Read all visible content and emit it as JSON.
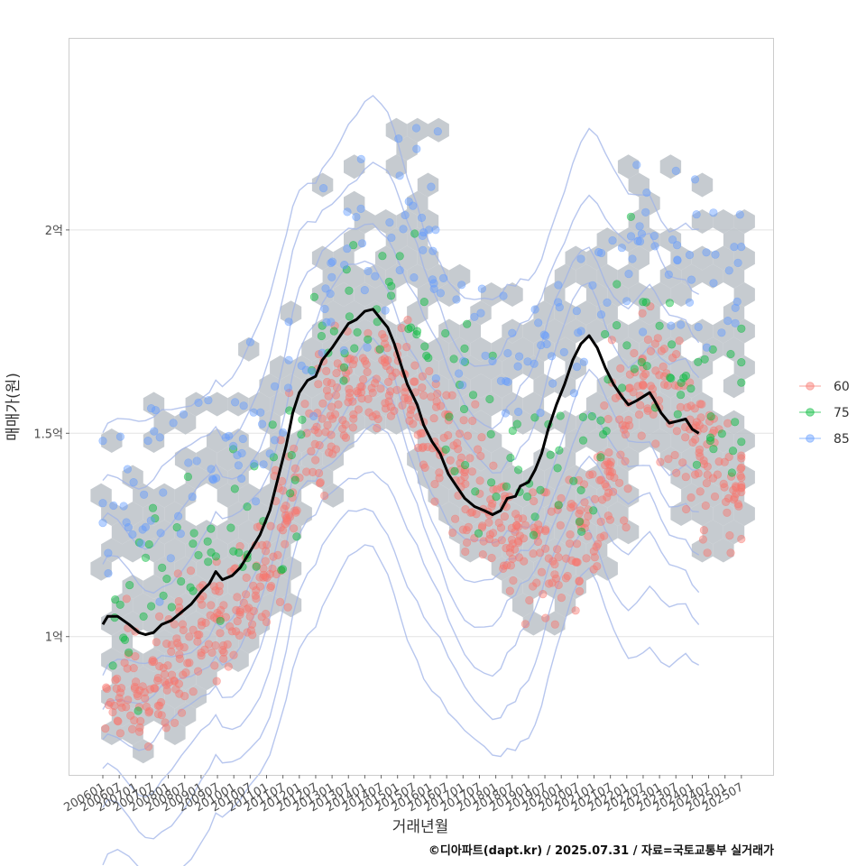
{
  "chart_data": {
    "type": "scatter",
    "xlabel": "거래년월",
    "ylabel": "매매가(원)",
    "caption": "©디아파트(dapt.kr) / 2025.07.31 / 자료=국토교통부 실거래가",
    "x_ticks": [
      "200601",
      "200607",
      "200701",
      "200707",
      "200801",
      "200807",
      "200901",
      "200907",
      "201001",
      "201007",
      "201101",
      "201107",
      "201201",
      "201207",
      "201301",
      "201307",
      "201401",
      "201407",
      "201501",
      "201507",
      "201601",
      "201607",
      "201701",
      "201707",
      "201801",
      "201807",
      "201901",
      "201907",
      "202001",
      "202007",
      "202101",
      "202107",
      "202201",
      "202207",
      "202301",
      "202307",
      "202401",
      "202407",
      "202501",
      "202507"
    ],
    "y_ticks": [
      {
        "value": 100000000,
        "label": "1억"
      },
      {
        "value": 150000000,
        "label": "1.5억"
      },
      {
        "value": 200000000,
        "label": "2억"
      }
    ],
    "ylim": [
      66000000,
      247000000
    ],
    "grid": true,
    "legend_position": "right",
    "colors": {
      "60": "#f8766d",
      "75": "#00ba38",
      "85": "#619cff",
      "hex": "#bcc2c8",
      "trend": "#000000",
      "contour": "#9fb3e8"
    },
    "series": [
      {
        "name": "60",
        "centers": [
          {
            "x": 1.2,
            "y": 88000000
          },
          {
            "x": 2.6,
            "y": 86000000
          },
          {
            "x": 4.0,
            "y": 90000000
          },
          {
            "x": 5.5,
            "y": 100000000
          },
          {
            "x": 7.0,
            "y": 104000000
          },
          {
            "x": 8.5,
            "y": 108000000
          },
          {
            "x": 10.0,
            "y": 118000000
          },
          {
            "x": 11.5,
            "y": 134000000
          },
          {
            "x": 13.0,
            "y": 150000000
          },
          {
            "x": 14.5,
            "y": 158000000
          },
          {
            "x": 16.0,
            "y": 163000000
          },
          {
            "x": 17.5,
            "y": 165000000
          },
          {
            "x": 19.0,
            "y": 158000000
          },
          {
            "x": 20.5,
            "y": 150000000
          },
          {
            "x": 22.0,
            "y": 140000000
          },
          {
            "x": 23.5,
            "y": 132000000
          },
          {
            "x": 25.0,
            "y": 124000000
          },
          {
            "x": 26.5,
            "y": 120000000
          },
          {
            "x": 28.0,
            "y": 122000000
          },
          {
            "x": 29.5,
            "y": 128000000
          },
          {
            "x": 31.0,
            "y": 140000000
          },
          {
            "x": 32.5,
            "y": 160000000
          },
          {
            "x": 34.0,
            "y": 164000000
          },
          {
            "x": 35.5,
            "y": 152000000
          },
          {
            "x": 37.0,
            "y": 142000000
          },
          {
            "x": 38.5,
            "y": 138000000
          }
        ]
      },
      {
        "name": "75",
        "centers": [
          {
            "x": 1.0,
            "y": 104000000
          },
          {
            "x": 3.0,
            "y": 110000000
          },
          {
            "x": 5.0,
            "y": 116000000
          },
          {
            "x": 7.0,
            "y": 120000000
          },
          {
            "x": 9.0,
            "y": 126000000
          },
          {
            "x": 11.0,
            "y": 140000000
          },
          {
            "x": 13.0,
            "y": 164000000
          },
          {
            "x": 15.0,
            "y": 180000000
          },
          {
            "x": 17.0,
            "y": 184000000
          },
          {
            "x": 19.0,
            "y": 176000000
          },
          {
            "x": 21.0,
            "y": 158000000
          },
          {
            "x": 23.0,
            "y": 146000000
          },
          {
            "x": 25.0,
            "y": 140000000
          },
          {
            "x": 27.0,
            "y": 136000000
          },
          {
            "x": 29.0,
            "y": 140000000
          },
          {
            "x": 31.0,
            "y": 158000000
          },
          {
            "x": 33.0,
            "y": 174000000
          },
          {
            "x": 35.0,
            "y": 166000000
          },
          {
            "x": 37.0,
            "y": 158000000
          },
          {
            "x": 38.5,
            "y": 152000000
          }
        ]
      },
      {
        "name": "85",
        "centers": [
          {
            "x": 0.6,
            "y": 130000000
          },
          {
            "x": 2.2,
            "y": 134000000
          },
          {
            "x": 4.0,
            "y": 138000000
          },
          {
            "x": 6.0,
            "y": 144000000
          },
          {
            "x": 8.0,
            "y": 146000000
          },
          {
            "x": 10.0,
            "y": 152000000
          },
          {
            "x": 12.0,
            "y": 168000000
          },
          {
            "x": 14.0,
            "y": 188000000
          },
          {
            "x": 16.0,
            "y": 196000000
          },
          {
            "x": 18.0,
            "y": 200000000
          },
          {
            "x": 19.5,
            "y": 210000000
          },
          {
            "x": 21.0,
            "y": 186000000
          },
          {
            "x": 23.0,
            "y": 176000000
          },
          {
            "x": 25.0,
            "y": 170000000
          },
          {
            "x": 27.0,
            "y": 172000000
          },
          {
            "x": 29.0,
            "y": 176000000
          },
          {
            "x": 31.0,
            "y": 190000000
          },
          {
            "x": 33.0,
            "y": 200000000
          },
          {
            "x": 35.0,
            "y": 196000000
          },
          {
            "x": 37.0,
            "y": 190000000
          },
          {
            "x": 38.5,
            "y": 186000000
          }
        ]
      }
    ],
    "trend": [
      {
        "x": 0.0,
        "y": 103000000
      },
      {
        "x": 0.3,
        "y": 105000000
      },
      {
        "x": 0.9,
        "y": 105000000
      },
      {
        "x": 1.6,
        "y": 103000000
      },
      {
        "x": 2.2,
        "y": 101000000
      },
      {
        "x": 2.6,
        "y": 100500000
      },
      {
        "x": 3.1,
        "y": 101000000
      },
      {
        "x": 3.6,
        "y": 103000000
      },
      {
        "x": 4.2,
        "y": 104000000
      },
      {
        "x": 4.8,
        "y": 106000000
      },
      {
        "x": 5.4,
        "y": 108000000
      },
      {
        "x": 6.0,
        "y": 111000000
      },
      {
        "x": 6.5,
        "y": 113000000
      },
      {
        "x": 6.9,
        "y": 116000000
      },
      {
        "x": 7.3,
        "y": 114000000
      },
      {
        "x": 7.9,
        "y": 115000000
      },
      {
        "x": 8.4,
        "y": 117000000
      },
      {
        "x": 9.0,
        "y": 121000000
      },
      {
        "x": 9.6,
        "y": 125000000
      },
      {
        "x": 10.2,
        "y": 131000000
      },
      {
        "x": 10.7,
        "y": 139000000
      },
      {
        "x": 11.2,
        "y": 147000000
      },
      {
        "x": 11.6,
        "y": 155000000
      },
      {
        "x": 12.0,
        "y": 160000000
      },
      {
        "x": 12.5,
        "y": 163000000
      },
      {
        "x": 13.0,
        "y": 164000000
      },
      {
        "x": 13.4,
        "y": 168000000
      },
      {
        "x": 14.0,
        "y": 171000000
      },
      {
        "x": 14.5,
        "y": 174000000
      },
      {
        "x": 15.0,
        "y": 177000000
      },
      {
        "x": 15.5,
        "y": 178000000
      },
      {
        "x": 16.0,
        "y": 180000000
      },
      {
        "x": 16.5,
        "y": 180500000
      },
      {
        "x": 17.0,
        "y": 178000000
      },
      {
        "x": 17.4,
        "y": 176000000
      },
      {
        "x": 17.8,
        "y": 172000000
      },
      {
        "x": 18.2,
        "y": 167000000
      },
      {
        "x": 18.6,
        "y": 162000000
      },
      {
        "x": 19.2,
        "y": 157000000
      },
      {
        "x": 19.6,
        "y": 152000000
      },
      {
        "x": 20.1,
        "y": 148000000
      },
      {
        "x": 20.6,
        "y": 145000000
      },
      {
        "x": 21.1,
        "y": 140000000
      },
      {
        "x": 21.6,
        "y": 137000000
      },
      {
        "x": 22.1,
        "y": 134000000
      },
      {
        "x": 22.7,
        "y": 132000000
      },
      {
        "x": 23.3,
        "y": 131000000
      },
      {
        "x": 23.8,
        "y": 130000000
      },
      {
        "x": 24.3,
        "y": 131000000
      },
      {
        "x": 24.7,
        "y": 134000000
      },
      {
        "x": 25.2,
        "y": 134500000
      },
      {
        "x": 25.5,
        "y": 137000000
      },
      {
        "x": 26.0,
        "y": 138000000
      },
      {
        "x": 26.4,
        "y": 141000000
      },
      {
        "x": 26.8,
        "y": 145000000
      },
      {
        "x": 27.2,
        "y": 151000000
      },
      {
        "x": 27.7,
        "y": 157000000
      },
      {
        "x": 28.2,
        "y": 162000000
      },
      {
        "x": 28.7,
        "y": 168000000
      },
      {
        "x": 29.2,
        "y": 172000000
      },
      {
        "x": 29.7,
        "y": 174000000
      },
      {
        "x": 30.2,
        "y": 171000000
      },
      {
        "x": 30.7,
        "y": 166000000
      },
      {
        "x": 31.2,
        "y": 162000000
      },
      {
        "x": 31.7,
        "y": 159000000
      },
      {
        "x": 32.1,
        "y": 157000000
      },
      {
        "x": 32.6,
        "y": 158000000
      },
      {
        "x": 33.0,
        "y": 159000000
      },
      {
        "x": 33.4,
        "y": 160000000
      },
      {
        "x": 33.7,
        "y": 158000000
      },
      {
        "x": 34.1,
        "y": 155000000
      },
      {
        "x": 34.6,
        "y": 152500000
      },
      {
        "x": 35.1,
        "y": 153000000
      },
      {
        "x": 35.6,
        "y": 153500000
      },
      {
        "x": 36.0,
        "y": 151000000
      },
      {
        "x": 36.4,
        "y": 150000000
      }
    ]
  }
}
